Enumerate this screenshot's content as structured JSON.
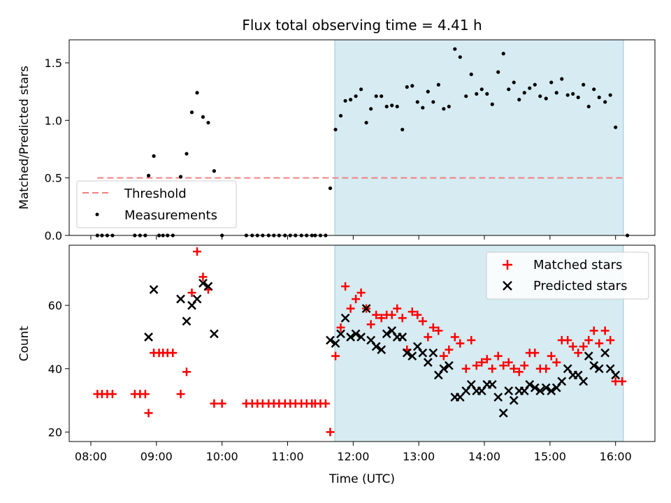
{
  "chart_data": [
    {
      "type": "scatter",
      "title": "Flux total observing time = 4.41 h",
      "xlabel": "",
      "ylabel": "Matched/Predicted stars",
      "xlim": [
        7.67,
        16.6
      ],
      "ylim": [
        0,
        1.7
      ],
      "yticks": [
        0.0,
        0.5,
        1.0,
        1.5
      ],
      "ytick_labels": [
        "0.0",
        "0.5",
        "1.0",
        "1.5"
      ],
      "xticks": [
        8,
        9,
        10,
        11,
        12,
        13,
        14,
        15,
        16
      ],
      "shaded_region": {
        "x_start": 11.72,
        "x_end": 16.12,
        "color": "#add8e6"
      },
      "threshold": {
        "name": "Threshold",
        "value": 0.5,
        "x_start": 8.1,
        "x_end": 16.15,
        "color": "#f08080"
      },
      "legend": {
        "position": "lower-left",
        "entries": [
          "Threshold",
          "Measurements"
        ]
      },
      "series": [
        {
          "name": "Measurements",
          "color": "#000000",
          "points": [
            [
              8.1,
              0
            ],
            [
              8.17,
              0
            ],
            [
              8.25,
              0
            ],
            [
              8.33,
              0
            ],
            [
              8.67,
              0
            ],
            [
              8.75,
              0
            ],
            [
              8.83,
              0
            ],
            [
              8.88,
              0.52
            ],
            [
              8.96,
              0.69
            ],
            [
              9.04,
              0
            ],
            [
              9.1,
              0
            ],
            [
              9.17,
              0
            ],
            [
              9.25,
              0
            ],
            [
              9.37,
              0.51
            ],
            [
              9.46,
              0.71
            ],
            [
              9.54,
              1.07
            ],
            [
              9.62,
              1.24
            ],
            [
              9.71,
              1.03
            ],
            [
              9.79,
              0.98
            ],
            [
              9.88,
              0.56
            ],
            [
              10.0,
              0
            ],
            [
              10.37,
              0
            ],
            [
              10.46,
              0
            ],
            [
              10.54,
              0
            ],
            [
              10.62,
              0
            ],
            [
              10.71,
              0
            ],
            [
              10.79,
              0
            ],
            [
              10.87,
              0
            ],
            [
              10.96,
              0
            ],
            [
              11.04,
              0
            ],
            [
              11.12,
              0
            ],
            [
              11.21,
              0
            ],
            [
              11.29,
              0
            ],
            [
              11.37,
              0
            ],
            [
              11.42,
              0
            ],
            [
              11.5,
              0
            ],
            [
              11.58,
              0
            ],
            [
              11.65,
              0.41
            ],
            [
              11.73,
              0.92
            ],
            [
              11.81,
              1.04
            ],
            [
              11.88,
              1.17
            ],
            [
              11.96,
              1.18
            ],
            [
              12.04,
              1.21
            ],
            [
              12.12,
              1.27
            ],
            [
              12.2,
              0.98
            ],
            [
              12.27,
              1.1
            ],
            [
              12.35,
              1.21
            ],
            [
              12.43,
              1.21
            ],
            [
              12.51,
              1.12
            ],
            [
              12.59,
              1.13
            ],
            [
              12.67,
              1.12
            ],
            [
              12.75,
              0.92
            ],
            [
              12.82,
              1.29
            ],
            [
              12.9,
              1.3
            ],
            [
              12.98,
              1.16
            ],
            [
              13.06,
              1.11
            ],
            [
              13.14,
              1.25
            ],
            [
              13.22,
              1.16
            ],
            [
              13.3,
              1.31
            ],
            [
              13.38,
              1.1
            ],
            [
              13.46,
              1.12
            ],
            [
              13.55,
              1.62
            ],
            [
              13.63,
              1.55
            ],
            [
              13.72,
              1.21
            ],
            [
              13.8,
              1.4
            ],
            [
              13.88,
              1.23
            ],
            [
              13.96,
              1.27
            ],
            [
              14.04,
              1.23
            ],
            [
              14.12,
              1.14
            ],
            [
              14.21,
              1.42
            ],
            [
              14.29,
              1.58
            ],
            [
              14.37,
              1.27
            ],
            [
              14.45,
              1.33
            ],
            [
              14.53,
              1.18
            ],
            [
              14.61,
              1.24
            ],
            [
              14.69,
              1.28
            ],
            [
              14.77,
              1.31
            ],
            [
              14.85,
              1.21
            ],
            [
              14.94,
              1.19
            ],
            [
              15.02,
              1.33
            ],
            [
              15.1,
              1.24
            ],
            [
              15.18,
              1.36
            ],
            [
              15.27,
              1.22
            ],
            [
              15.35,
              1.23
            ],
            [
              15.43,
              1.2
            ],
            [
              15.51,
              1.31
            ],
            [
              15.59,
              1.12
            ],
            [
              15.67,
              1.27
            ],
            [
              15.75,
              1.2
            ],
            [
              15.84,
              1.16
            ],
            [
              15.92,
              1.22
            ],
            [
              16.0,
              0.94
            ],
            [
              16.18,
              0
            ]
          ]
        }
      ]
    },
    {
      "type": "scatter",
      "title": "",
      "xlabel": "Time (UTC)",
      "ylabel": "Count",
      "xlim": [
        7.67,
        16.6
      ],
      "ylim": [
        17,
        79
      ],
      "yticks": [
        20,
        40,
        60
      ],
      "ytick_labels": [
        "20",
        "40",
        "60"
      ],
      "xticks": [
        8,
        9,
        10,
        11,
        12,
        13,
        14,
        15,
        16
      ],
      "xtick_labels": [
        "08:00",
        "09:00",
        "10:00",
        "11:00",
        "12:00",
        "13:00",
        "14:00",
        "15:00",
        "16:00"
      ],
      "shaded_region": {
        "x_start": 11.72,
        "x_end": 16.12,
        "color": "#add8e6"
      },
      "legend": {
        "position": "top-right",
        "entries": [
          "Matched stars",
          "Predicted stars"
        ]
      },
      "series": [
        {
          "name": "Matched stars",
          "marker": "plus",
          "color": "#ff0000",
          "points": [
            [
              8.1,
              32
            ],
            [
              8.17,
              32
            ],
            [
              8.25,
              32
            ],
            [
              8.33,
              32
            ],
            [
              8.67,
              32
            ],
            [
              8.75,
              32
            ],
            [
              8.83,
              32
            ],
            [
              8.88,
              26
            ],
            [
              8.96,
              45
            ],
            [
              9.04,
              45
            ],
            [
              9.1,
              45
            ],
            [
              9.17,
              45
            ],
            [
              9.25,
              45
            ],
            [
              9.37,
              32
            ],
            [
              9.46,
              39
            ],
            [
              9.54,
              64
            ],
            [
              9.62,
              77
            ],
            [
              9.71,
              69
            ],
            [
              9.79,
              65
            ],
            [
              9.88,
              29
            ],
            [
              10.0,
              29
            ],
            [
              10.37,
              29
            ],
            [
              10.46,
              29
            ],
            [
              10.54,
              29
            ],
            [
              10.62,
              29
            ],
            [
              10.71,
              29
            ],
            [
              10.79,
              29
            ],
            [
              10.87,
              29
            ],
            [
              10.96,
              29
            ],
            [
              11.04,
              29
            ],
            [
              11.12,
              29
            ],
            [
              11.21,
              29
            ],
            [
              11.29,
              29
            ],
            [
              11.37,
              29
            ],
            [
              11.42,
              29
            ],
            [
              11.5,
              29
            ],
            [
              11.58,
              29
            ],
            [
              11.65,
              20
            ],
            [
              11.73,
              44
            ],
            [
              11.81,
              53
            ],
            [
              11.88,
              66
            ],
            [
              11.96,
              59
            ],
            [
              12.04,
              62
            ],
            [
              12.12,
              64
            ],
            [
              12.2,
              59
            ],
            [
              12.27,
              54
            ],
            [
              12.35,
              57
            ],
            [
              12.43,
              56
            ],
            [
              12.51,
              57
            ],
            [
              12.59,
              57
            ],
            [
              12.67,
              59
            ],
            [
              12.75,
              56
            ],
            [
              12.82,
              46
            ],
            [
              12.9,
              58
            ],
            [
              12.98,
              57
            ],
            [
              13.06,
              55
            ],
            [
              13.14,
              50
            ],
            [
              13.22,
              53
            ],
            [
              13.3,
              52
            ],
            [
              13.38,
              44
            ],
            [
              13.46,
              46
            ],
            [
              13.55,
              50
            ],
            [
              13.63,
              48
            ],
            [
              13.72,
              40
            ],
            [
              13.8,
              49
            ],
            [
              13.88,
              41
            ],
            [
              13.96,
              42
            ],
            [
              14.04,
              43
            ],
            [
              14.12,
              40
            ],
            [
              14.21,
              44
            ],
            [
              14.29,
              41
            ],
            [
              14.37,
              42
            ],
            [
              14.45,
              40
            ],
            [
              14.53,
              39
            ],
            [
              14.61,
              41
            ],
            [
              14.69,
              45
            ],
            [
              14.77,
              45
            ],
            [
              14.85,
              40
            ],
            [
              14.94,
              40
            ],
            [
              15.02,
              44
            ],
            [
              15.1,
              42
            ],
            [
              15.18,
              49
            ],
            [
              15.27,
              49
            ],
            [
              15.35,
              47
            ],
            [
              15.43,
              45
            ],
            [
              15.51,
              47
            ],
            [
              15.59,
              49
            ],
            [
              15.67,
              52
            ],
            [
              15.75,
              48
            ],
            [
              15.84,
              52
            ],
            [
              15.92,
              49
            ],
            [
              16.0,
              36
            ],
            [
              16.1,
              36
            ]
          ]
        },
        {
          "name": "Predicted stars",
          "marker": "x",
          "color": "#000000",
          "points": [
            [
              8.88,
              50
            ],
            [
              8.96,
              65
            ],
            [
              9.37,
              62
            ],
            [
              9.46,
              55
            ],
            [
              9.54,
              60
            ],
            [
              9.62,
              62
            ],
            [
              9.71,
              67
            ],
            [
              9.79,
              66
            ],
            [
              9.88,
              51
            ],
            [
              11.65,
              49
            ],
            [
              11.73,
              48
            ],
            [
              11.81,
              51
            ],
            [
              11.88,
              56
            ],
            [
              11.96,
              50
            ],
            [
              12.04,
              51
            ],
            [
              12.12,
              50
            ],
            [
              12.2,
              59
            ],
            [
              12.27,
              49
            ],
            [
              12.35,
              47
            ],
            [
              12.43,
              46
            ],
            [
              12.51,
              51
            ],
            [
              12.59,
              52
            ],
            [
              12.67,
              50
            ],
            [
              12.75,
              50
            ],
            [
              12.82,
              45
            ],
            [
              12.9,
              44
            ],
            [
              12.98,
              47
            ],
            [
              13.06,
              45
            ],
            [
              13.14,
              42
            ],
            [
              13.22,
              45
            ],
            [
              13.3,
              38
            ],
            [
              13.38,
              40
            ],
            [
              13.46,
              41
            ],
            [
              13.55,
              31
            ],
            [
              13.63,
              31
            ],
            [
              13.72,
              33
            ],
            [
              13.8,
              35
            ],
            [
              13.88,
              33
            ],
            [
              13.96,
              33
            ],
            [
              14.04,
              35
            ],
            [
              14.12,
              35
            ],
            [
              14.21,
              31
            ],
            [
              14.29,
              26
            ],
            [
              14.37,
              33
            ],
            [
              14.45,
              30
            ],
            [
              14.53,
              33
            ],
            [
              14.61,
              33
            ],
            [
              14.69,
              35
            ],
            [
              14.77,
              34
            ],
            [
              14.85,
              33
            ],
            [
              14.94,
              34
            ],
            [
              15.02,
              33
            ],
            [
              15.1,
              34
            ],
            [
              15.18,
              36
            ],
            [
              15.27,
              40
            ],
            [
              15.35,
              38
            ],
            [
              15.43,
              38
            ],
            [
              15.51,
              36
            ],
            [
              15.59,
              44
            ],
            [
              15.67,
              41
            ],
            [
              15.75,
              40
            ],
            [
              15.84,
              45
            ],
            [
              15.92,
              40
            ],
            [
              16.0,
              38
            ]
          ]
        }
      ]
    }
  ]
}
